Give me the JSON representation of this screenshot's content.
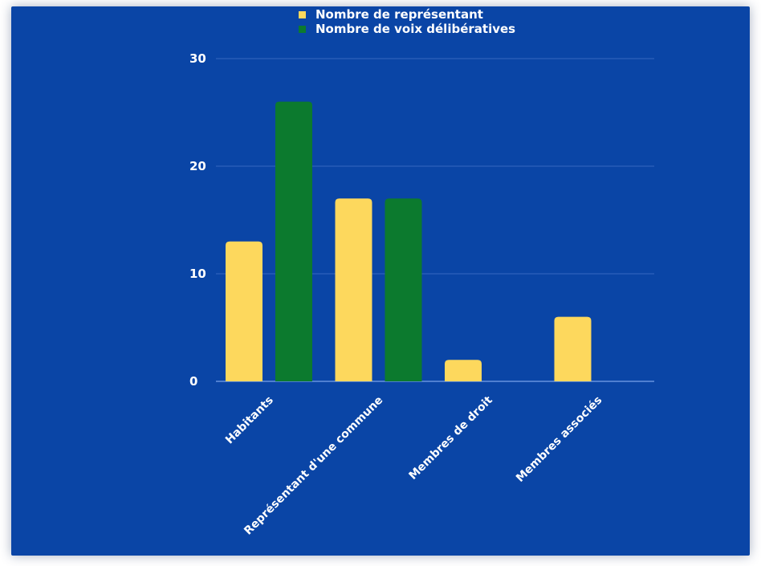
{
  "chart_data": {
    "type": "bar",
    "categories": [
      "Habitants",
      "Représentant d'une commune",
      "Membres de droit",
      "Membres associés"
    ],
    "series": [
      {
        "name": "Nombre de représentant",
        "values": [
          13,
          17,
          2,
          6
        ],
        "color": "#fdd85d"
      },
      {
        "name": "Nombre de voix délibératives",
        "values": [
          26,
          17,
          0,
          0
        ],
        "color": "#0c7a2e"
      }
    ],
    "ylim": [
      0,
      30
    ],
    "yticks": [
      0,
      10,
      20,
      30
    ],
    "grid": true,
    "legend": "top",
    "background": "#0a45a6",
    "title": "",
    "xlabel": "",
    "ylabel": ""
  }
}
